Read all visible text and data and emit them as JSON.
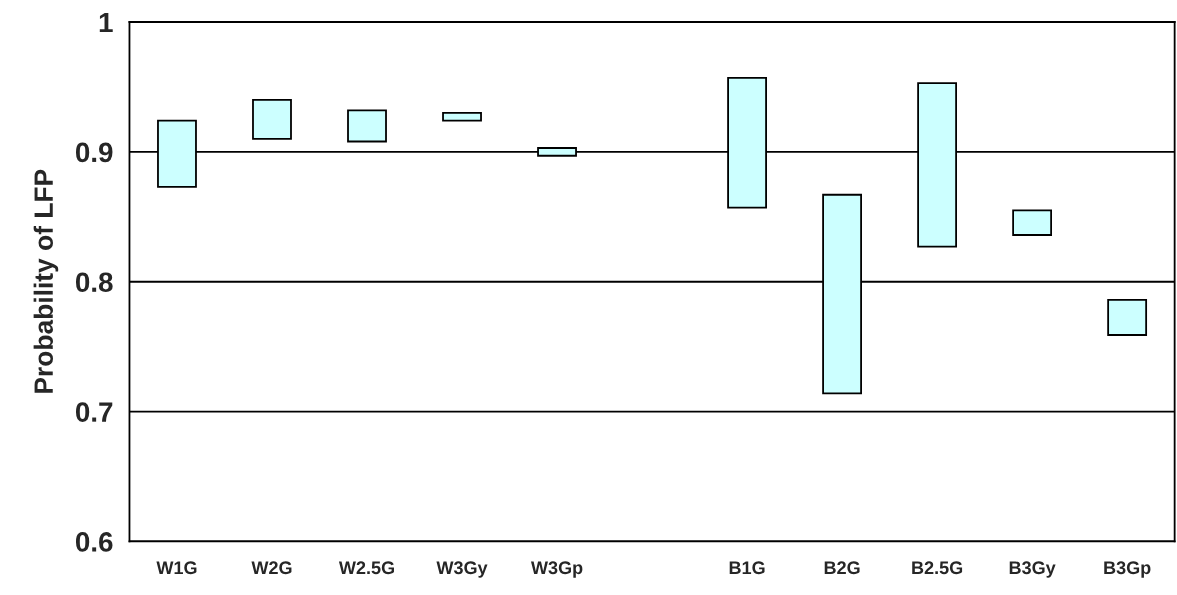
{
  "chart_data": {
    "type": "bar",
    "ylabel": "Probability of LFP",
    "categories": [
      "W1G",
      "W2G",
      "W2.5G",
      "W3Gy",
      "W3Gp",
      null,
      "B1G",
      "B2G",
      "B2.5G",
      "B3Gy",
      "B3Gp"
    ],
    "base": [
      0.873,
      0.91,
      0.908,
      0.924,
      0.897,
      null,
      0.857,
      0.714,
      0.827,
      0.836,
      0.759
    ],
    "values": [
      0.051,
      0.03,
      0.024,
      0.006,
      0.006,
      null,
      0.1,
      0.153,
      0.126,
      0.019,
      0.027
    ],
    "color": "#ccffff",
    "ylim": [
      0.6,
      1
    ],
    "yticks": [
      0.6,
      0.7,
      0.8,
      0.9,
      1
    ],
    "grid": "y",
    "legend": false
  }
}
